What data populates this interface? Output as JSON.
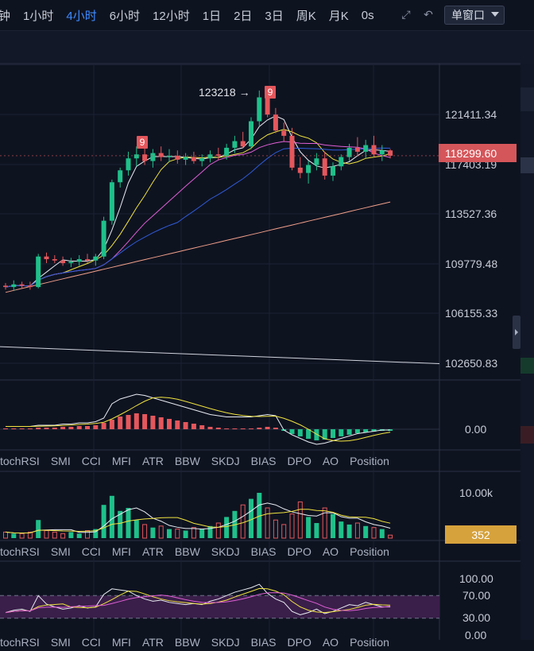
{
  "toolbar": {
    "timeframes": [
      "钟",
      "1小时",
      "4小时",
      "6小时",
      "12小时",
      "1日",
      "2日",
      "3日",
      "周K",
      "月K",
      "0s"
    ],
    "active_timeframe": "4小时",
    "layout_select": "单窗口",
    "icons": [
      "fullscreen-icon",
      "undo-draw-icon"
    ]
  },
  "price_axis": {
    "labels": [
      "121411.34",
      "117403.19",
      "113527.36",
      "109779.48",
      "106155.33",
      "102650.83"
    ],
    "last_price": "118299.60",
    "high_annotation": "123218",
    "td_labels": [
      "9",
      "9"
    ]
  },
  "macd_pane": {
    "axis_label": "0.00"
  },
  "indicator_tabs": [
    "tochRSI",
    "SMI",
    "CCI",
    "MFI",
    "ATR",
    "BBW",
    "SKDJ",
    "BIAS",
    "DPO",
    "AO",
    "Position"
  ],
  "volume_pane": {
    "axis_label": "10.00k",
    "current_volume": "352"
  },
  "rsi_pane": {
    "axis_labels": [
      "100.00",
      "70.00",
      "30.00",
      "0.00"
    ]
  },
  "colors": {
    "background": "#0e1320",
    "up_candle": "#1fc08a",
    "down_candle": "#e4575c",
    "active_tab": "#3d8bff",
    "last_price_badge": "#d5565a",
    "volume_badge": "#d6a23c",
    "rsi_band": "#3a1f4a"
  },
  "chart_data": {
    "type": "candlestick",
    "price_range": [
      100000,
      125000
    ],
    "candles_ohlc_approx": [
      [
        108500,
        108700,
        108200,
        108400
      ],
      [
        108400,
        108900,
        108100,
        108600
      ],
      [
        108600,
        108800,
        108300,
        108500
      ],
      [
        108500,
        108800,
        108200,
        108400
      ],
      [
        108400,
        110900,
        108300,
        110700
      ],
      [
        110700,
        111000,
        110200,
        110500
      ],
      [
        110500,
        110800,
        110200,
        110400
      ],
      [
        110400,
        110700,
        110000,
        110200
      ],
      [
        110200,
        110600,
        109900,
        110300
      ],
      [
        110300,
        110800,
        110000,
        110500
      ],
      [
        110500,
        110900,
        110200,
        110400
      ],
      [
        110400,
        110900,
        110000,
        110700
      ],
      [
        110700,
        113700,
        110500,
        113400
      ],
      [
        113400,
        116500,
        113100,
        116300
      ],
      [
        116300,
        117400,
        115900,
        117200
      ],
      [
        117200,
        118600,
        116800,
        118100
      ],
      [
        118100,
        119000,
        117500,
        118400
      ],
      [
        118400,
        118900,
        117600,
        117900
      ],
      [
        117900,
        118800,
        117400,
        118500
      ],
      [
        118500,
        119000,
        117900,
        118200
      ],
      [
        118200,
        118800,
        117800,
        118300
      ],
      [
        118300,
        118700,
        117700,
        118000
      ],
      [
        118000,
        118500,
        117600,
        118200
      ],
      [
        118200,
        118600,
        117700,
        117900
      ],
      [
        117900,
        118400,
        117500,
        118100
      ],
      [
        118100,
        118700,
        117800,
        118400
      ],
      [
        118400,
        118900,
        118000,
        118300
      ],
      [
        118300,
        119200,
        118000,
        118900
      ],
      [
        118900,
        119800,
        118500,
        119400
      ],
      [
        119400,
        120100,
        118900,
        119000
      ],
      [
        119000,
        121200,
        118800,
        120900
      ],
      [
        120900,
        123218,
        120500,
        122700
      ],
      [
        122700,
        123100,
        121200,
        121400
      ],
      [
        121400,
        121900,
        120000,
        120200
      ],
      [
        120200,
        120800,
        119400,
        119800
      ],
      [
        119800,
        120400,
        117200,
        117400
      ],
      [
        117400,
        118200,
        116600,
        117000
      ],
      [
        117000,
        117900,
        116200,
        117600
      ],
      [
        117600,
        118500,
        117200,
        118100
      ],
      [
        118100,
        118600,
        116500,
        116800
      ],
      [
        116800,
        117800,
        116400,
        117500
      ],
      [
        117500,
        118400,
        117200,
        118200
      ],
      [
        118200,
        119200,
        117900,
        118900
      ],
      [
        118900,
        119700,
        118300,
        118600
      ],
      [
        118600,
        119500,
        118100,
        119100
      ],
      [
        119100,
        119800,
        118200,
        118400
      ],
      [
        118400,
        119100,
        117900,
        118700
      ],
      [
        118700,
        118800,
        118100,
        118299.6
      ]
    ],
    "volume_axis_max": "10.00k",
    "rsi_levels": [
      30,
      70
    ]
  }
}
